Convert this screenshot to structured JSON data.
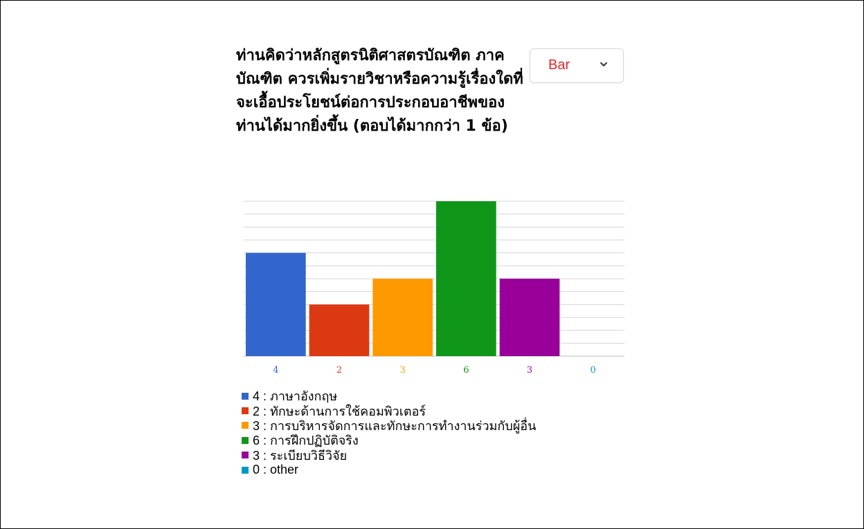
{
  "question": "ท่านคิดว่าหลักสูตรนิติศาสตรบัณฑิต ภาคบัณฑิต ควรเพิ่มรายวิชาหรือความรู้เรื่องใดที่จะเอื้อประโยชน์ต่อการประกอบอาชีพของท่านได้มากยิ่งขึ้น (ตอบได้มากกว่า 1 ข้อ)",
  "chart_type_select": {
    "label": "Bar",
    "icon": "chevron-down-icon"
  },
  "chart_data": {
    "type": "bar",
    "title": "",
    "xlabel": "",
    "ylabel": "",
    "ylim": [
      0,
      6
    ],
    "grid": true,
    "legend_position": "bottom",
    "categories": [
      "ภาษาอังกฤษ",
      "ทักษะด้านการใช้คอมพิวเตอร์",
      "การบริหารจัดการและทักษะการทำงานร่วมกับผู้อื่น",
      "การฝึกปฏิบัติจริง",
      "ระเบียบวิธีวิจัย",
      "other"
    ],
    "values": [
      4,
      2,
      3,
      6,
      3,
      0
    ],
    "value_labels": [
      "4",
      "2",
      "3",
      "6",
      "3",
      "0"
    ],
    "colors": [
      "#3366cc",
      "#dc3912",
      "#ff9900",
      "#109618",
      "#990099",
      "#0099c6"
    ]
  },
  "legend": [
    {
      "label": "4 : ภาษาอังกฤษ",
      "color": "#3366cc"
    },
    {
      "label": "2 : ทักษะด้านการใช้คอมพิวเตอร์",
      "color": "#dc3912"
    },
    {
      "label": "3 : การบริหารจัดการและทักษะการทำงานร่วมกับผู้อื่น",
      "color": "#ff9900"
    },
    {
      "label": "6 : การฝึกปฏิบัติจริง",
      "color": "#109618"
    },
    {
      "label": "3 : ระเบียบวิธีวิจัย",
      "color": "#990099"
    },
    {
      "label": "0 : other",
      "color": "#0099c6"
    }
  ]
}
